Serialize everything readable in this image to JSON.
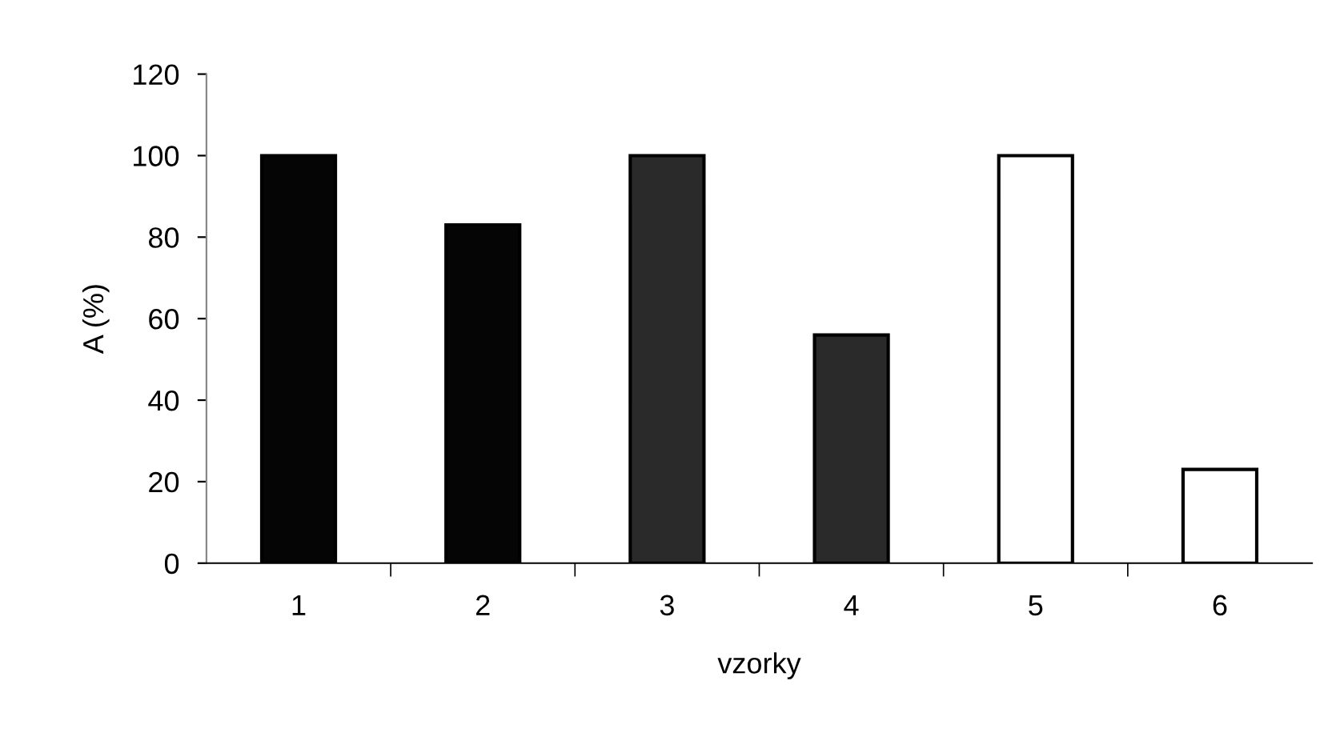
{
  "chart_data": {
    "type": "bar",
    "xlabel": "vzorky",
    "ylabel": "A (%)",
    "categories": [
      "1",
      "2",
      "3",
      "4",
      "5",
      "6"
    ],
    "values": [
      100,
      83,
      100,
      56,
      100,
      23
    ],
    "colors": [
      "#050505",
      "#050505",
      "#2a2a2a",
      "#2a2a2a",
      "#ffffff",
      "#ffffff"
    ],
    "ylim": [
      0,
      120
    ],
    "yticks": [
      0,
      20,
      40,
      60,
      80,
      100,
      120
    ],
    "grid": false,
    "legend": false
  }
}
